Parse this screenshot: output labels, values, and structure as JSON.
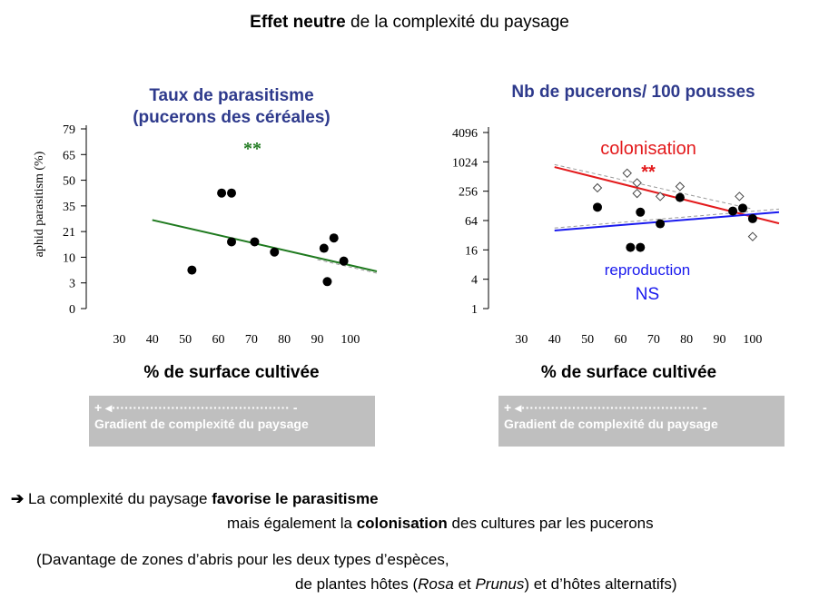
{
  "page_title": {
    "bold": "Effet neutre",
    "rest": " de la complexité du paysage"
  },
  "chart_data": [
    {
      "type": "scatter",
      "title_line1": "Taux de parasitisme",
      "title_line2": "(pucerons des céréales)",
      "ylabel": "aphid parasitism (%)",
      "xlabel": "% de surface cultivée",
      "xlim": [
        20,
        108
      ],
      "xticks": [
        30,
        40,
        50,
        60,
        70,
        80,
        90,
        100
      ],
      "yticks": [
        "0",
        "3",
        "10",
        "21",
        "35",
        "50",
        "65",
        "79"
      ],
      "annotation": "**",
      "points": [
        {
          "x": 52,
          "y_pos": 1.5
        },
        {
          "x": 61,
          "y_pos": 4.5
        },
        {
          "x": 64,
          "y_pos": 4.5
        },
        {
          "x": 64,
          "y_pos": 2.6
        },
        {
          "x": 71,
          "y_pos": 2.6
        },
        {
          "x": 77,
          "y_pos": 2.2
        },
        {
          "x": 92,
          "y_pos": 2.35
        },
        {
          "x": 93,
          "y_pos": 1.05
        },
        {
          "x": 95,
          "y_pos": 2.75
        },
        {
          "x": 98,
          "y_pos": 1.85
        }
      ],
      "trend": [
        {
          "x": 40,
          "y_pos": 3.45
        },
        {
          "x": 108,
          "y_pos": 1.45
        }
      ],
      "colors": {
        "trend": "#1f7a1f",
        "annotation": "#1f7a1f"
      }
    },
    {
      "type": "scatter",
      "title": "Nb de pucerons/ 100 pousses",
      "xlabel": "% de surface cultivée",
      "xlim": [
        20,
        108
      ],
      "xticks": [
        30,
        40,
        50,
        60,
        70,
        80,
        90,
        100
      ],
      "yticks": [
        "1",
        "4",
        "16",
        "64",
        "256",
        "1024",
        "4096"
      ],
      "log_scale": true,
      "series": [
        {
          "name": "colonisation",
          "marker": "open-diamond",
          "stat": "**",
          "points": [
            {
              "x": 53,
              "y": 300
            },
            {
              "x": 62,
              "y": 600
            },
            {
              "x": 65,
              "y": 380
            },
            {
              "x": 65,
              "y": 230
            },
            {
              "x": 72,
              "y": 200
            },
            {
              "x": 78,
              "y": 320
            },
            {
              "x": 96,
              "y": 200
            },
            {
              "x": 100,
              "y": 30
            }
          ],
          "trend": [
            {
              "x": 40,
              "y": 800
            },
            {
              "x": 108,
              "y": 56
            }
          ]
        },
        {
          "name": "reproduction",
          "marker": "filled-circle",
          "stat": "NS",
          "points": [
            {
              "x": 53,
              "y": 120
            },
            {
              "x": 63,
              "y": 18
            },
            {
              "x": 66,
              "y": 18
            },
            {
              "x": 66,
              "y": 95
            },
            {
              "x": 72,
              "y": 55
            },
            {
              "x": 78,
              "y": 190
            },
            {
              "x": 94,
              "y": 100
            },
            {
              "x": 97,
              "y": 115
            },
            {
              "x": 100,
              "y": 70
            }
          ],
          "trend": [
            {
              "x": 40,
              "y": 40
            },
            {
              "x": 108,
              "y": 95
            }
          ]
        }
      ],
      "colors": {
        "colonisation": "#e31a1c",
        "reproduction": "#1a1aee",
        "stat_red": "#e31a1c"
      }
    }
  ],
  "gradient": {
    "plus": "+",
    "minus": "-",
    "label": "Gradient de complexité du paysage"
  },
  "conclusion": {
    "arrow": "➔",
    "l1_pre": " La complexité du paysage ",
    "l1_bold": "favorise le parasitisme",
    "l2_pre": "mais également la ",
    "l2_bold": "colonisation",
    "l2_post": " des cultures par les pucerons",
    "l3": "(Davantage de zones d’abris pour les deux types d’espèces,",
    "l4_pre": "de plantes hôtes (",
    "l4_i1": "Rosa",
    "l4_mid": " et ",
    "l4_i2": "Prunus",
    "l4_post": ") et d’hôtes alternatifs)"
  }
}
